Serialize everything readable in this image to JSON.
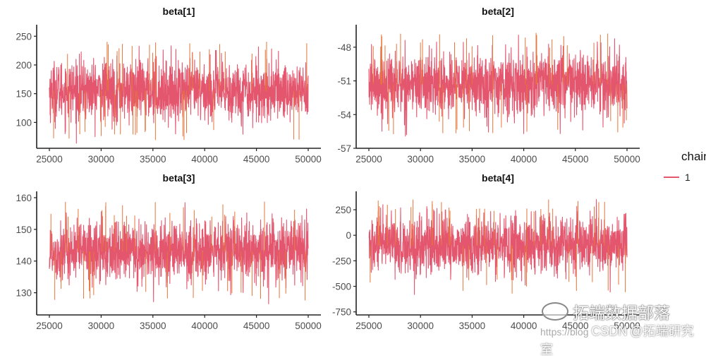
{
  "chart_data": [
    {
      "type": "line",
      "title": "beta[1]",
      "x_range": [
        25000,
        50000
      ],
      "x_ticks": [
        25000,
        30000,
        35000,
        40000,
        45000,
        50000
      ],
      "ylim": [
        55,
        270
      ],
      "y_ticks": [
        100,
        150,
        200,
        250
      ],
      "series": [
        {
          "name": "1",
          "center": 155,
          "typical_range": [
            95,
            215
          ],
          "extremes": [
            62,
            263
          ]
        }
      ]
    },
    {
      "type": "line",
      "title": "beta[2]",
      "x_range": [
        25000,
        50000
      ],
      "x_ticks": [
        25000,
        30000,
        35000,
        40000,
        45000,
        50000
      ],
      "ylim": [
        -57,
        -46
      ],
      "y_ticks": [
        -57,
        -54,
        -51,
        -48
      ],
      "series": [
        {
          "name": "1",
          "center": -51.3,
          "typical_range": [
            -54.2,
            -47.8
          ],
          "extremes": [
            -56.2,
            -46.7
          ]
        }
      ]
    },
    {
      "type": "line",
      "title": "beta[3]",
      "x_range": [
        25000,
        50000
      ],
      "x_ticks": [
        25000,
        30000,
        35000,
        40000,
        45000,
        50000
      ],
      "ylim": [
        123,
        162
      ],
      "y_ticks": [
        130,
        140,
        150,
        160
      ],
      "series": [
        {
          "name": "1",
          "center": 143,
          "typical_range": [
            132,
            154
          ],
          "extremes": [
            124,
            160
          ]
        }
      ]
    },
    {
      "type": "line",
      "title": "beta[4]",
      "x_range": [
        25000,
        50000
      ],
      "x_ticks": [
        25000,
        30000,
        35000,
        40000,
        45000,
        50000
      ],
      "ylim": [
        -780,
        430
      ],
      "y_ticks": [
        -750,
        -500,
        -250,
        0,
        250
      ],
      "series": [
        {
          "name": "1",
          "center": -100,
          "typical_range": [
            -440,
            220
          ],
          "extremes": [
            -680,
            350
          ]
        }
      ]
    }
  ],
  "legend": {
    "title": "chain",
    "items": [
      "1"
    ]
  },
  "colors": {
    "trace": "#e3566e",
    "trace_accent": "#e8753a",
    "axis": "#222222",
    "tick_text": "#4d4d4d"
  },
  "watermark": {
    "main": "拓端数据部落",
    "footer_prefix": "https://blog",
    "footer_csdn": "CSDN",
    "footer_suffix": "@拓端研究室"
  }
}
